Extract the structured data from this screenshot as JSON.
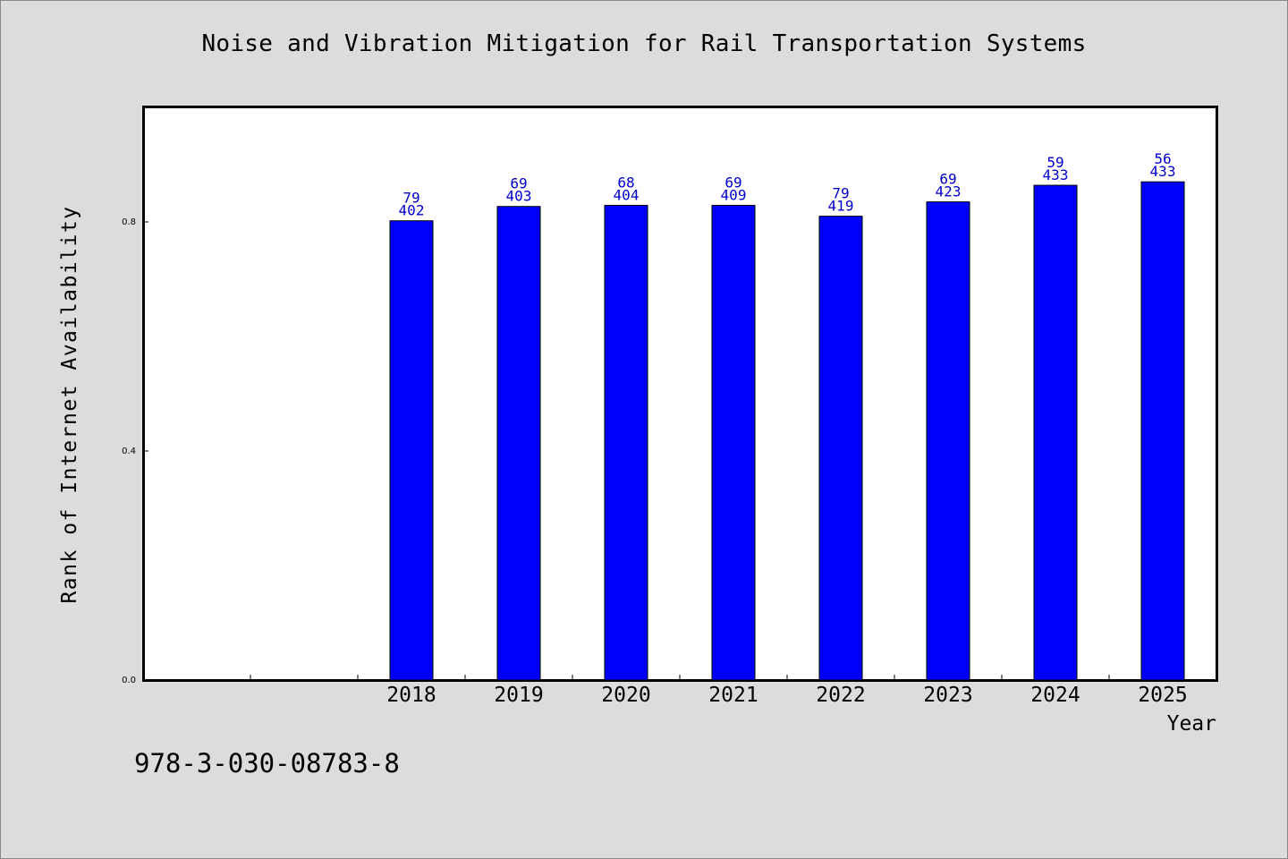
{
  "chart_data": {
    "type": "bar",
    "title": "Noise and Vibration Mitigation for Rail Transportation Systems",
    "xlabel": "Year",
    "ylabel": "Rank of Internet Availability",
    "categories": [
      "2018",
      "2019",
      "2020",
      "2021",
      "2022",
      "2023",
      "2024",
      "2025"
    ],
    "values": [
      0.802,
      0.827,
      0.829,
      0.829,
      0.81,
      0.835,
      0.864,
      0.87
    ],
    "label_top": [
      "79",
      "69",
      "68",
      "69",
      "79",
      "69",
      "59",
      "56"
    ],
    "label_bottom": [
      "402",
      "403",
      "404",
      "409",
      "419",
      "423",
      "433",
      "433"
    ],
    "ylim": [
      0,
      1.0
    ],
    "yticks": [
      0.0,
      0.4,
      0.8
    ],
    "ytick_labels": [
      "0.0",
      "0.4",
      "0.8"
    ],
    "grid": false,
    "colors": {
      "bar": "#0000ff",
      "bar_edge": "#000000",
      "data_label": "#0000cc"
    }
  },
  "footer": {
    "isbn": "978-3-030-08783-8"
  }
}
